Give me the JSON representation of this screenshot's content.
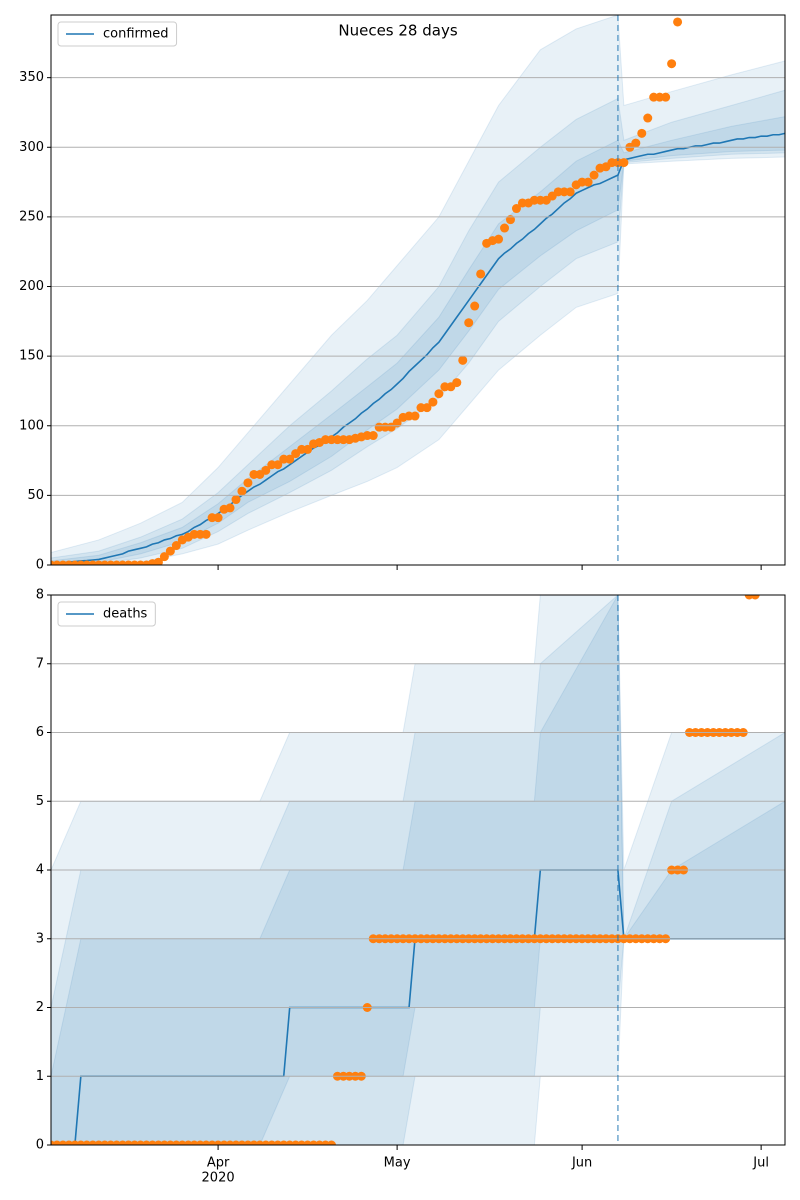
{
  "chart_data": [
    {
      "type": "line",
      "title": "Nueces 28 days",
      "xlim": [
        0,
        123
      ],
      "xticks": [
        28,
        58,
        89,
        119
      ],
      "ylim": [
        0,
        395
      ],
      "yticks": [
        0,
        50,
        100,
        150,
        200,
        250,
        300,
        350
      ],
      "grid": true,
      "legend": "upper left",
      "forecast_start": 95,
      "series": [
        {
          "name": "confirmed",
          "color": "#1f77b4",
          "style": "line",
          "values": [
            1,
            1.4,
            1.8,
            2.1,
            2.5,
            2.9,
            3.2,
            3.6,
            4,
            5,
            6,
            7,
            8,
            10,
            11,
            12,
            13,
            15,
            16,
            18,
            19,
            21,
            22,
            24,
            27,
            29,
            32,
            34,
            37,
            40,
            43,
            47,
            50,
            53,
            56,
            58,
            61,
            64,
            67,
            69,
            72,
            75,
            78,
            81,
            84,
            86,
            89,
            92,
            95,
            99,
            102,
            105,
            109,
            112,
            116,
            119,
            123,
            126,
            130,
            134,
            139,
            143,
            147,
            151,
            156,
            160,
            166,
            172,
            178,
            184,
            190,
            196,
            202,
            208,
            214,
            220,
            224,
            227,
            231,
            234,
            238,
            241,
            245,
            249,
            252,
            256,
            260,
            263,
            267,
            269,
            271,
            273,
            274,
            276,
            278,
            280,
            291,
            292,
            293,
            294,
            295,
            295,
            296,
            297,
            298,
            299,
            299,
            300,
            301,
            301,
            302,
            303,
            303,
            304,
            305,
            306,
            306,
            307,
            307,
            308,
            308,
            309,
            309,
            310
          ]
        },
        {
          "color": "#ff7f0e",
          "style": "scatter",
          "values": [
            0,
            0,
            0,
            0,
            0,
            0,
            0,
            0,
            0,
            0,
            0,
            0,
            0,
            0,
            0,
            0,
            0,
            1,
            2,
            6,
            10,
            14,
            18,
            20,
            22,
            22,
            22,
            34,
            34,
            40,
            41,
            47,
            53,
            59,
            65,
            65,
            68,
            72,
            72,
            76,
            76,
            80,
            83,
            83,
            87,
            88,
            90,
            90,
            90,
            90,
            90,
            91,
            92,
            93,
            93,
            99,
            99,
            99,
            102,
            106,
            107,
            107,
            113,
            113,
            117,
            123,
            128,
            128,
            131,
            147,
            174,
            186,
            209,
            231,
            233,
            234,
            242,
            248,
            256,
            260,
            260,
            262,
            262,
            262,
            265,
            268,
            268,
            268,
            273,
            275,
            275,
            280,
            285,
            286,
            289,
            289,
            289,
            300,
            303,
            310,
            321,
            336,
            336,
            336,
            360,
            390,
            null,
            null,
            null,
            null,
            null,
            null,
            null,
            null,
            null,
            null,
            null,
            null,
            null,
            null,
            null,
            null,
            null,
            null
          ]
        }
      ],
      "bands": [
        {
          "color": "#1f77b4",
          "x": [
            0,
            8,
            15,
            22,
            28,
            33,
            40,
            47,
            53,
            58,
            65,
            70,
            75,
            82,
            88,
            95,
            96,
            104,
            114,
            123
          ],
          "lower": [
            0,
            0,
            2,
            8,
            15,
            25,
            38,
            50,
            60,
            70,
            90,
            115,
            140,
            165,
            185,
            195,
            288,
            290,
            292,
            293
          ],
          "upper": [
            9,
            18,
            30,
            45,
            70,
            95,
            130,
            165,
            190,
            215,
            250,
            290,
            330,
            370,
            385,
            395,
            330,
            340,
            352,
            362
          ]
        },
        {
          "color": "#1f77b4",
          "x": [
            0,
            8,
            15,
            22,
            28,
            33,
            40,
            47,
            53,
            58,
            65,
            70,
            75,
            82,
            88,
            95,
            96,
            104,
            114,
            123
          ],
          "lower": [
            0,
            1,
            5,
            12,
            24,
            37,
            52,
            68,
            85,
            98,
            120,
            145,
            175,
            200,
            220,
            232,
            289,
            292,
            295,
            296
          ],
          "upper": [
            5,
            10,
            20,
            33,
            52,
            72,
            100,
            125,
            148,
            165,
            200,
            240,
            275,
            300,
            320,
            335,
            305,
            318,
            330,
            341
          ]
        },
        {
          "color": "#1f77b4",
          "x": [
            0,
            8,
            15,
            22,
            28,
            33,
            40,
            47,
            53,
            58,
            65,
            70,
            75,
            82,
            88,
            95,
            96,
            104,
            114,
            123
          ],
          "lower": [
            0,
            2,
            8,
            17,
            30,
            45,
            60,
            78,
            97,
            112,
            140,
            168,
            198,
            222,
            240,
            255,
            290,
            294,
            297,
            298
          ],
          "upper": [
            3,
            7,
            16,
            27,
            44,
            62,
            85,
            108,
            128,
            145,
            178,
            212,
            245,
            268,
            290,
            305,
            296,
            305,
            315,
            322
          ]
        }
      ]
    },
    {
      "type": "line",
      "xlim": [
        0,
        123
      ],
      "xticks": [
        {
          "value": 28,
          "label": "Apr"
        },
        {
          "value": 58,
          "label": "May"
        },
        {
          "value": 89,
          "label": "Jun"
        },
        {
          "value": 119,
          "label": "Jul"
        }
      ],
      "xtick_year": "2020",
      "ylim": [
        0,
        8
      ],
      "yticks": [
        0,
        1,
        2,
        3,
        4,
        5,
        6,
        7,
        8
      ],
      "grid": true,
      "legend": "upper left",
      "forecast_start": 95,
      "series": [
        {
          "name": "deaths",
          "color": "#1f77b4",
          "style": "line",
          "values": [
            0,
            0,
            0,
            0,
            0,
            1,
            1,
            1,
            1,
            1,
            1,
            1,
            1,
            1,
            1,
            1,
            1,
            1,
            1,
            1,
            1,
            1,
            1,
            1,
            1,
            1,
            1,
            1,
            1,
            1,
            1,
            1,
            1,
            1,
            1,
            1,
            1,
            1,
            1,
            1,
            2,
            2,
            2,
            2,
            2,
            2,
            2,
            2,
            2,
            2,
            2,
            2,
            2,
            2,
            2,
            2,
            2,
            2,
            2,
            2,
            2,
            3,
            3,
            3,
            3,
            3,
            3,
            3,
            3,
            3,
            3,
            3,
            3,
            3,
            3,
            3,
            3,
            3,
            3,
            3,
            3,
            3,
            4,
            4,
            4,
            4,
            4,
            4,
            4,
            4,
            4,
            4,
            4,
            4,
            4,
            4,
            3,
            3,
            3,
            3,
            3,
            3,
            3,
            3,
            3,
            3,
            3,
            3,
            3,
            3,
            3,
            3,
            3,
            3,
            3,
            3,
            3,
            3,
            3,
            3,
            3,
            3,
            3,
            3
          ]
        },
        {
          "color": "#ff7f0e",
          "style": "scatter",
          "values": [
            0,
            0,
            0,
            0,
            0,
            0,
            0,
            0,
            0,
            0,
            0,
            0,
            0,
            0,
            0,
            0,
            0,
            0,
            0,
            0,
            0,
            0,
            0,
            0,
            0,
            0,
            0,
            0,
            0,
            0,
            0,
            0,
            0,
            0,
            0,
            0,
            0,
            0,
            0,
            0,
            0,
            0,
            0,
            0,
            0,
            0,
            0,
            0,
            1,
            1,
            1,
            1,
            1,
            2,
            3,
            3,
            3,
            3,
            3,
            3,
            3,
            3,
            3,
            3,
            3,
            3,
            3,
            3,
            3,
            3,
            3,
            3,
            3,
            3,
            3,
            3,
            3,
            3,
            3,
            3,
            3,
            3,
            3,
            3,
            3,
            3,
            3,
            3,
            3,
            3,
            3,
            3,
            3,
            3,
            3,
            3,
            3,
            3,
            3,
            3,
            3,
            3,
            3,
            3,
            4,
            4,
            4,
            6,
            6,
            6,
            6,
            6,
            6,
            6,
            6,
            6,
            6,
            8,
            8,
            null,
            null,
            null,
            null,
            null
          ]
        }
      ],
      "bands": [
        {
          "color": "#1f77b4",
          "x": [
            0,
            5,
            35,
            40,
            59,
            61,
            81,
            82,
            95,
            96,
            104,
            123
          ],
          "lower": [
            0,
            0,
            0,
            0,
            0,
            0,
            0,
            1,
            1,
            3,
            3,
            3
          ],
          "upper": [
            4,
            5,
            5,
            6,
            6,
            7,
            7,
            8,
            8,
            4,
            6,
            6
          ]
        },
        {
          "color": "#1f77b4",
          "x": [
            0,
            5,
            35,
            40,
            59,
            61,
            81,
            82,
            95,
            96,
            104,
            123
          ],
          "lower": [
            0,
            0,
            0,
            0,
            0,
            1,
            1,
            2,
            2,
            3,
            3,
            3
          ],
          "upper": [
            2,
            4,
            4,
            5,
            5,
            6,
            6,
            7,
            8,
            3,
            5,
            6
          ]
        },
        {
          "color": "#1f77b4",
          "x": [
            0,
            5,
            35,
            40,
            59,
            61,
            81,
            82,
            95,
            96,
            104,
            123
          ],
          "lower": [
            0,
            0,
            0,
            1,
            1,
            2,
            2,
            3,
            3,
            3,
            3,
            3
          ],
          "upper": [
            1,
            3,
            3,
            4,
            4,
            5,
            5,
            6,
            8,
            3,
            4,
            5
          ]
        }
      ]
    }
  ]
}
